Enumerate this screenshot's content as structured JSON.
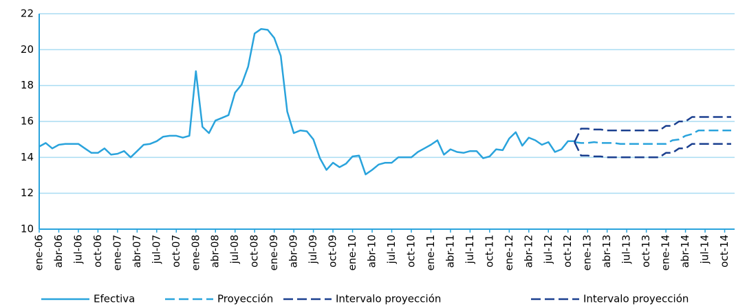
{
  "chart_data": {
    "type": "line",
    "categories": [
      "ene-06",
      null,
      null,
      "abr-06",
      null,
      null,
      "jul-06",
      null,
      null,
      "oct-06",
      null,
      null,
      "ene-07",
      null,
      null,
      "abr-07",
      null,
      null,
      "jul-07",
      null,
      null,
      "oct-07",
      null,
      null,
      "ene-08",
      null,
      null,
      "abr-08",
      null,
      null,
      "jul-08",
      null,
      null,
      "oct-08",
      null,
      null,
      "ene-09",
      null,
      null,
      "abr-09",
      null,
      null,
      "jul-09",
      null,
      null,
      "oct-09",
      null,
      null,
      "ene-10",
      null,
      null,
      "abr-10",
      null,
      null,
      "jul-10",
      null,
      null,
      "oct-10",
      null,
      null,
      "ene-11",
      null,
      null,
      "abr-11",
      null,
      null,
      "jul-11",
      null,
      null,
      "oct-11",
      null,
      null,
      "ene-12",
      null,
      null,
      "abr-12",
      null,
      null,
      "jul-12",
      null,
      null,
      "oct-12",
      null,
      null,
      "ene-13",
      null,
      null,
      "abr-13",
      null,
      null,
      "jul-13",
      null,
      null,
      "oct-13",
      null,
      null,
      "ene-14",
      null,
      null,
      "abr-14",
      null,
      null,
      "jul-14",
      null,
      null,
      "oct-14",
      null
    ],
    "series": [
      {
        "name": "Efectiva",
        "color": "#29a3dc",
        "dash": false,
        "values": [
          14.6,
          14.8,
          14.5,
          14.7,
          14.75,
          14.75,
          14.75,
          14.5,
          14.25,
          14.25,
          14.5,
          14.15,
          14.2,
          14.35,
          14.0,
          14.35,
          14.7,
          14.75,
          14.9,
          15.15,
          15.2,
          15.2,
          15.1,
          15.2,
          18.8,
          15.7,
          15.35,
          16.05,
          16.2,
          16.35,
          17.6,
          18.05,
          19.05,
          20.9,
          21.15,
          21.1,
          20.65,
          19.65,
          16.55,
          15.35,
          15.5,
          15.45,
          15.0,
          13.95,
          13.3,
          13.7,
          13.45,
          13.65,
          14.05,
          14.1,
          13.05,
          13.3,
          13.6,
          13.7,
          13.7,
          14.0,
          14.0,
          14.0,
          14.3,
          14.5,
          14.7,
          14.95,
          14.15,
          14.45,
          14.3,
          14.25,
          14.35,
          14.35,
          13.95,
          14.05,
          14.45,
          14.4,
          15.05,
          15.4,
          14.65,
          15.1,
          14.95,
          14.7,
          14.85,
          14.3,
          14.45,
          14.9,
          14.9,
          null,
          null,
          null,
          null,
          null,
          null,
          null,
          null,
          null,
          null,
          null,
          null,
          null,
          null,
          null,
          null,
          null,
          null,
          null,
          null,
          null,
          null,
          null,
          null
        ]
      },
      {
        "name": "Proyección",
        "color": "#29a3dc",
        "dash": true,
        "values": [
          null,
          null,
          null,
          null,
          null,
          null,
          null,
          null,
          null,
          null,
          null,
          null,
          null,
          null,
          null,
          null,
          null,
          null,
          null,
          null,
          null,
          null,
          null,
          null,
          null,
          null,
          null,
          null,
          null,
          null,
          null,
          null,
          null,
          null,
          null,
          null,
          null,
          null,
          null,
          null,
          null,
          null,
          null,
          null,
          null,
          null,
          null,
          null,
          null,
          null,
          null,
          null,
          null,
          null,
          null,
          null,
          null,
          null,
          null,
          null,
          null,
          null,
          null,
          null,
          null,
          null,
          null,
          null,
          null,
          null,
          null,
          null,
          null,
          null,
          null,
          null,
          null,
          null,
          null,
          null,
          null,
          null,
          14.85,
          14.8,
          14.8,
          14.85,
          14.8,
          14.8,
          14.8,
          14.75,
          14.75,
          14.75,
          14.75,
          14.75,
          14.75,
          14.75,
          14.75,
          14.95,
          15.0,
          15.2,
          15.3,
          15.5,
          15.5,
          15.5,
          15.5,
          15.5,
          15.5
        ]
      },
      {
        "name": "Intervalo proyección",
        "color": "#1a3f8f",
        "dash": true,
        "values": [
          null,
          null,
          null,
          null,
          null,
          null,
          null,
          null,
          null,
          null,
          null,
          null,
          null,
          null,
          null,
          null,
          null,
          null,
          null,
          null,
          null,
          null,
          null,
          null,
          null,
          null,
          null,
          null,
          null,
          null,
          null,
          null,
          null,
          null,
          null,
          null,
          null,
          null,
          null,
          null,
          null,
          null,
          null,
          null,
          null,
          null,
          null,
          null,
          null,
          null,
          null,
          null,
          null,
          null,
          null,
          null,
          null,
          null,
          null,
          null,
          null,
          null,
          null,
          null,
          null,
          null,
          null,
          null,
          null,
          null,
          null,
          null,
          null,
          null,
          null,
          null,
          null,
          null,
          null,
          null,
          null,
          null,
          14.85,
          15.6,
          15.6,
          15.55,
          15.55,
          15.5,
          15.5,
          15.5,
          15.5,
          15.5,
          15.5,
          15.5,
          15.5,
          15.5,
          15.75,
          15.75,
          16.0,
          16.0,
          16.25,
          16.25,
          16.25,
          16.25,
          16.25,
          16.25,
          16.25
        ]
      },
      {
        "name": "Intervalo proyección",
        "color": "#1a3f8f",
        "dash": true,
        "values": [
          null,
          null,
          null,
          null,
          null,
          null,
          null,
          null,
          null,
          null,
          null,
          null,
          null,
          null,
          null,
          null,
          null,
          null,
          null,
          null,
          null,
          null,
          null,
          null,
          null,
          null,
          null,
          null,
          null,
          null,
          null,
          null,
          null,
          null,
          null,
          null,
          null,
          null,
          null,
          null,
          null,
          null,
          null,
          null,
          null,
          null,
          null,
          null,
          null,
          null,
          null,
          null,
          null,
          null,
          null,
          null,
          null,
          null,
          null,
          null,
          null,
          null,
          null,
          null,
          null,
          null,
          null,
          null,
          null,
          null,
          null,
          null,
          null,
          null,
          null,
          null,
          null,
          null,
          null,
          null,
          null,
          null,
          14.85,
          14.1,
          14.1,
          14.05,
          14.05,
          14.0,
          14.0,
          14.0,
          14.0,
          14.0,
          14.0,
          14.0,
          14.0,
          14.0,
          14.25,
          14.25,
          14.5,
          14.5,
          14.75,
          14.75,
          14.75,
          14.75,
          14.75,
          14.75,
          14.75
        ]
      }
    ],
    "ylim": [
      10,
      22
    ],
    "yticks": [
      10,
      12,
      14,
      16,
      18,
      20,
      22
    ],
    "grid": true,
    "legend": "bottom"
  }
}
